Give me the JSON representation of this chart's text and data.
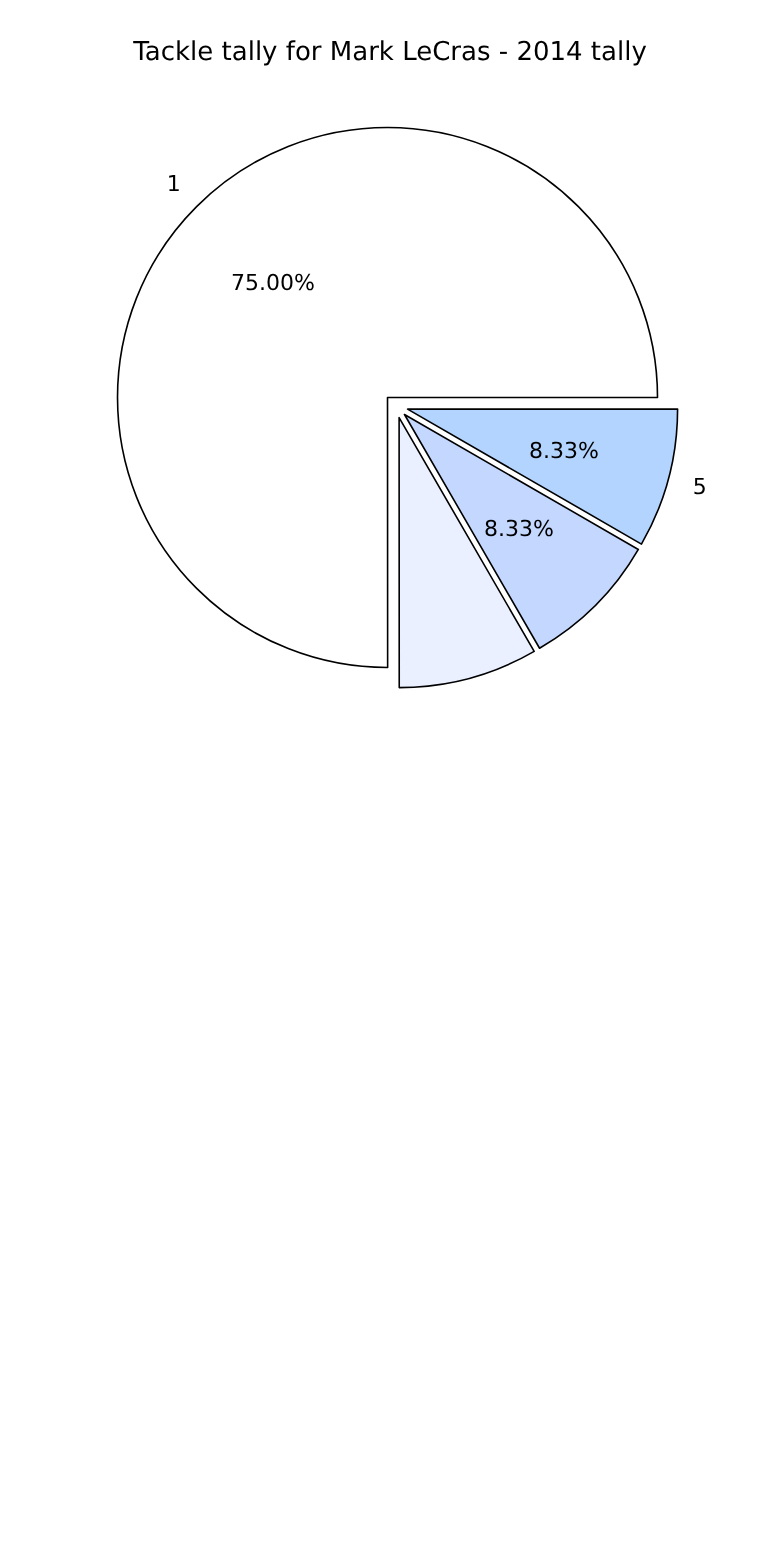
{
  "chart_data": {
    "type": "pie",
    "title": "Tackle tally for Mark LeCras - 2014 tally",
    "categories": [
      "1",
      null,
      null,
      "5"
    ],
    "values": [
      75,
      8.33,
      8.33,
      8.33
    ],
    "colors": [
      "#ffffff",
      "#eaf0ff",
      "#c4d7ff",
      "#b3d4ff"
    ],
    "value_labels": [
      "75.00%",
      null,
      "8.33%",
      "8.33%"
    ]
  }
}
